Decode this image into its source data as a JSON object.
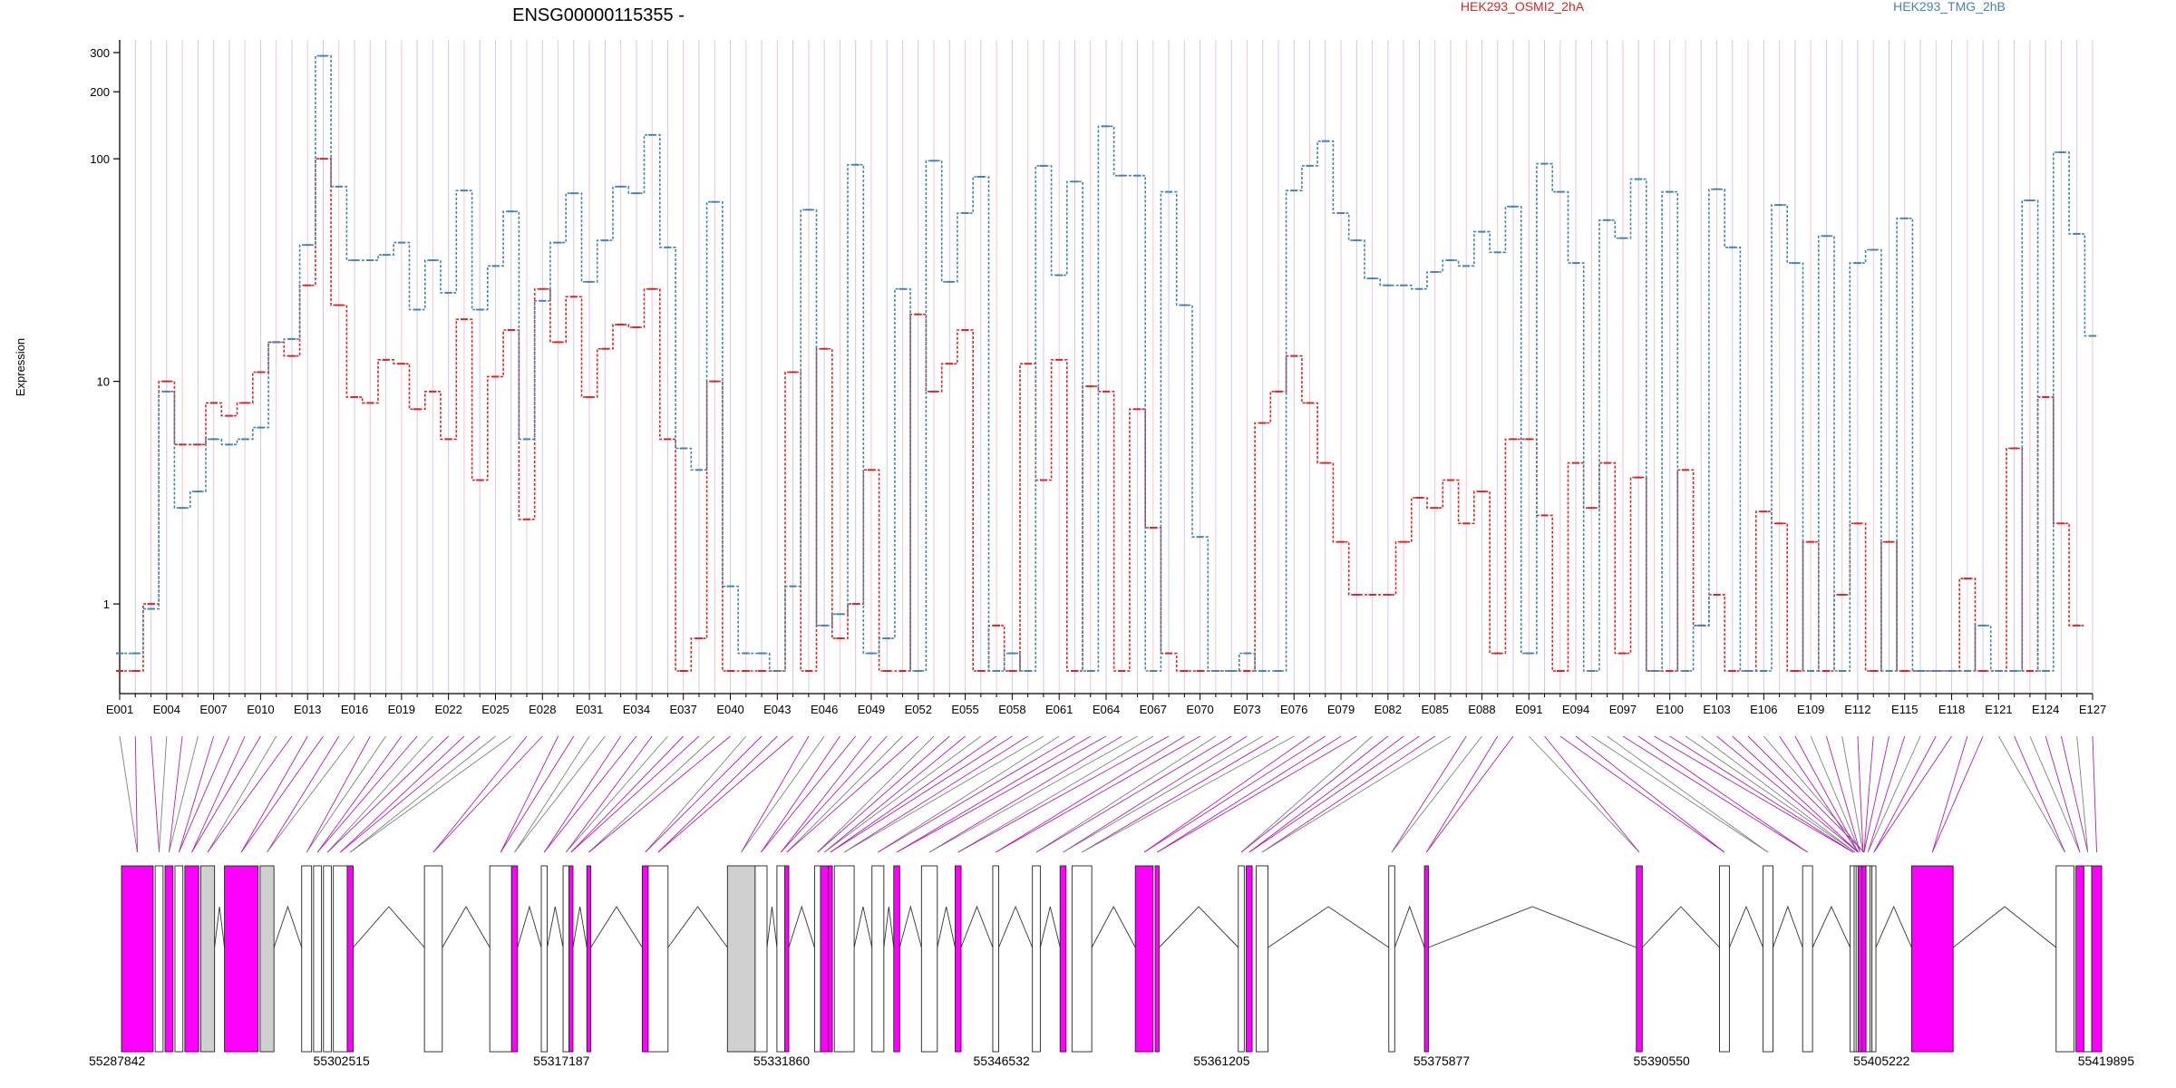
{
  "chart_data": {
    "type": "line",
    "title": "ENSG00000115355 -",
    "ylabel": "Expression",
    "y_scale": "log",
    "ylim": [
      0.5,
      300
    ],
    "y_ticks": [
      {
        "value": 1,
        "label": "1"
      },
      {
        "value": 10,
        "label": "10"
      },
      {
        "value": 100,
        "label": "100"
      },
      {
        "value": 200,
        "label": "200"
      },
      {
        "value": 300,
        "label": "300"
      }
    ],
    "exons": [
      "E001",
      "E002",
      "E003",
      "E004",
      "E005",
      "E006",
      "E007",
      "E008",
      "E009",
      "E010",
      "E011",
      "E012",
      "E013",
      "E014",
      "E015",
      "E016",
      "E017",
      "E018",
      "E019",
      "E020",
      "E021",
      "E022",
      "E023",
      "E024",
      "E025",
      "E026",
      "E027",
      "E028",
      "E029",
      "E030",
      "E031",
      "E032",
      "E033",
      "E034",
      "E035",
      "E036",
      "E037",
      "E038",
      "E039",
      "E040",
      "E041",
      "E042",
      "E043",
      "E044",
      "E045",
      "E046",
      "E047",
      "E048",
      "E049",
      "E050",
      "E051",
      "E052",
      "E053",
      "E054",
      "E055",
      "E056",
      "E057",
      "E058",
      "E059",
      "E060",
      "E061",
      "E062",
      "E063",
      "E064",
      "E065",
      "E066",
      "E067",
      "E068",
      "E069",
      "E070",
      "E071",
      "E072",
      "E073",
      "E074",
      "E075",
      "E076",
      "E077",
      "E078",
      "E079",
      "E080",
      "E081",
      "E082",
      "E083",
      "E084",
      "E085",
      "E086",
      "E087",
      "E088",
      "E089",
      "E090",
      "E091",
      "E092",
      "E093",
      "E094",
      "E095",
      "E096",
      "E097",
      "E098",
      "E099",
      "E100",
      "E101",
      "E102",
      "E103",
      "E104",
      "E105",
      "E106",
      "E107",
      "E108",
      "E109",
      "E110",
      "E111",
      "E112",
      "E113",
      "E114",
      "E115",
      "E116",
      "E117",
      "E118",
      "E119",
      "E120",
      "E121",
      "E122",
      "E123",
      "E124",
      "E125",
      "E126",
      "E127"
    ],
    "x_tick_labels": [
      "E001",
      "E004",
      "E007",
      "E010",
      "E013",
      "E016",
      "E019",
      "E022",
      "E025",
      "E028",
      "E031",
      "E034",
      "E037",
      "E040",
      "E043",
      "E046",
      "E049",
      "E052",
      "E055",
      "E058",
      "E061",
      "E064",
      "E067",
      "E070",
      "E073",
      "E076",
      "E079",
      "E082",
      "E085",
      "E088",
      "E091",
      "E094",
      "E097",
      "E100",
      "E103",
      "E106",
      "E109",
      "E112",
      "E115",
      "E118",
      "E121",
      "E124",
      "E127"
    ],
    "series": [
      {
        "name": "HEK293_OSMI2_2hA",
        "color": "#d62728",
        "values": [
          0.5,
          0.5,
          1,
          10,
          5.2,
          5.2,
          8,
          7,
          8,
          11,
          15,
          13,
          27,
          100,
          22,
          8.5,
          8,
          12.5,
          12,
          7.5,
          9,
          5.5,
          19,
          3.6,
          10.5,
          17,
          2.4,
          26,
          15,
          24,
          8.5,
          14,
          18,
          17.5,
          26,
          5.5,
          0.5,
          0.7,
          10,
          0.5,
          0.5,
          0.5,
          0.5,
          11,
          0.5,
          14,
          0.7,
          1,
          4,
          0.5,
          0.5,
          20,
          9,
          12,
          17,
          0.5,
          0.8,
          0.5,
          12,
          3.6,
          12.5,
          0.5,
          9.5,
          9,
          0.5,
          7.5,
          2.2,
          0.6,
          0.5,
          0.5,
          0.5,
          0.5,
          0.5,
          6.5,
          9,
          13,
          8,
          4.3,
          1.9,
          1.1,
          1.1,
          1.1,
          1.9,
          3,
          2.7,
          3.6,
          2.3,
          3.2,
          0.6,
          5.5,
          5.5,
          2.5,
          0.5,
          4.3,
          2.7,
          4.3,
          0.6,
          3.7,
          0.5,
          0.5,
          4,
          0.8,
          1.1,
          0.5,
          0.5,
          2.6,
          2.3,
          0.5,
          1.9,
          0.5,
          1.1,
          2.3,
          0.5,
          1.9,
          0.5,
          0.5,
          0.5,
          0.5,
          1.3,
          0.5,
          0.5,
          5,
          0.5,
          8.5,
          2.3,
          0.8
        ]
      },
      {
        "name": "HEK293_TMG_2hB",
        "color": "#4682b4",
        "values": [
          0.6,
          0.6,
          0.95,
          9,
          2.7,
          3.2,
          5.5,
          5.2,
          5.5,
          6.2,
          15,
          15.5,
          41,
          290,
          75,
          35,
          35,
          37,
          42,
          21,
          35,
          25,
          72,
          21,
          33,
          58,
          5.5,
          23,
          42,
          70,
          28,
          43,
          75,
          70,
          128,
          40,
          5,
          4,
          64,
          1.2,
          0.6,
          0.6,
          0.5,
          1.2,
          59,
          0.8,
          0.9,
          94,
          0.6,
          0.7,
          26,
          0.5,
          98,
          28,
          57,
          83,
          0.5,
          0.6,
          0.5,
          93,
          30,
          79,
          0.5,
          140,
          84,
          84,
          0.5,
          71,
          22,
          2,
          0.5,
          0.5,
          0.6,
          0.5,
          0.5,
          72,
          93,
          120,
          57,
          43,
          29,
          27,
          27,
          26,
          31,
          35,
          33,
          47,
          38,
          61,
          0.6,
          95,
          71,
          34,
          0.5,
          53,
          44,
          81,
          0.5,
          71,
          0.5,
          0.8,
          73,
          40,
          0.5,
          0.5,
          62,
          34,
          0.5,
          45,
          0.5,
          34,
          39,
          0.5,
          54,
          0.5,
          0.5,
          0.5,
          0.5,
          0.8,
          0.5,
          0.5,
          65,
          0.5,
          107,
          46,
          16
        ]
      }
    ],
    "legend": {
      "position": "top-right",
      "entries": [
        "HEK293_OSMI2_2hA",
        "HEK293_TMG_2hB"
      ]
    },
    "grid": {
      "vertical_per_exon": true,
      "colors": [
        "#f4c6cf",
        "#c9c6f4"
      ]
    },
    "genomic": {
      "coordinate_labels": [
        "55287842",
        "55302515",
        "55317187",
        "55331860",
        "55346532",
        "55361205",
        "55375877",
        "55390550",
        "55405222",
        "55419895"
      ],
      "start": 55287842,
      "end": 55419895,
      "highlight_color": "#ff00ff",
      "exon_fill": "#ffffff",
      "shaded_fill": "#d0d0d0",
      "connector_colors": [
        "#808080",
        "#b020b0"
      ]
    }
  }
}
